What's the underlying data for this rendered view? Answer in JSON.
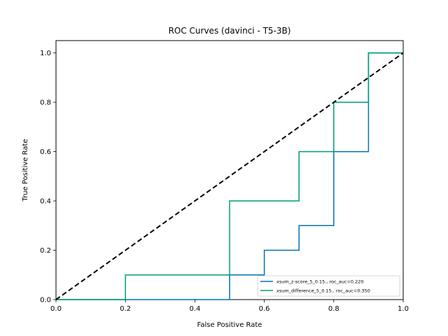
{
  "chart_data": {
    "type": "line",
    "title": "ROC Curves (davinci - T5-3B)",
    "xlabel": "False Positive Rate",
    "ylabel": "True Positive Rate",
    "xlim": [
      0,
      1
    ],
    "ylim": [
      0,
      1.05
    ],
    "xticks": [
      "0.0",
      "0.2",
      "0.4",
      "0.6",
      "0.8",
      "1.0"
    ],
    "yticks": [
      "0.0",
      "0.2",
      "0.4",
      "0.6",
      "0.8",
      "1.0"
    ],
    "grid": false,
    "legend_position": "lower-right",
    "diagonal": {
      "x": [
        0,
        1
      ],
      "y": [
        0,
        1
      ],
      "color": "#000000",
      "style": "dashed"
    },
    "series": [
      {
        "name": "xsum_z-score_5_0.15., roc_auc=0.220",
        "color": "#0072b2",
        "x": [
          0,
          0.5,
          0.5,
          0.6,
          0.6,
          0.7,
          0.7,
          0.8,
          0.8,
          0.9,
          0.9,
          1.0
        ],
        "y": [
          0,
          0,
          0.1,
          0.1,
          0.2,
          0.2,
          0.3,
          0.3,
          0.6,
          0.6,
          1.0,
          1.0
        ]
      },
      {
        "name": "xsum_difference_5_0.15., roc_auc=0.350",
        "color": "#009e73",
        "x": [
          0,
          0.2,
          0.2,
          0.5,
          0.5,
          0.7,
          0.7,
          0.8,
          0.8,
          0.9,
          0.9,
          1.0
        ],
        "y": [
          0,
          0,
          0.1,
          0.1,
          0.4,
          0.4,
          0.6,
          0.6,
          0.8,
          0.8,
          1.0,
          1.0
        ]
      }
    ]
  }
}
